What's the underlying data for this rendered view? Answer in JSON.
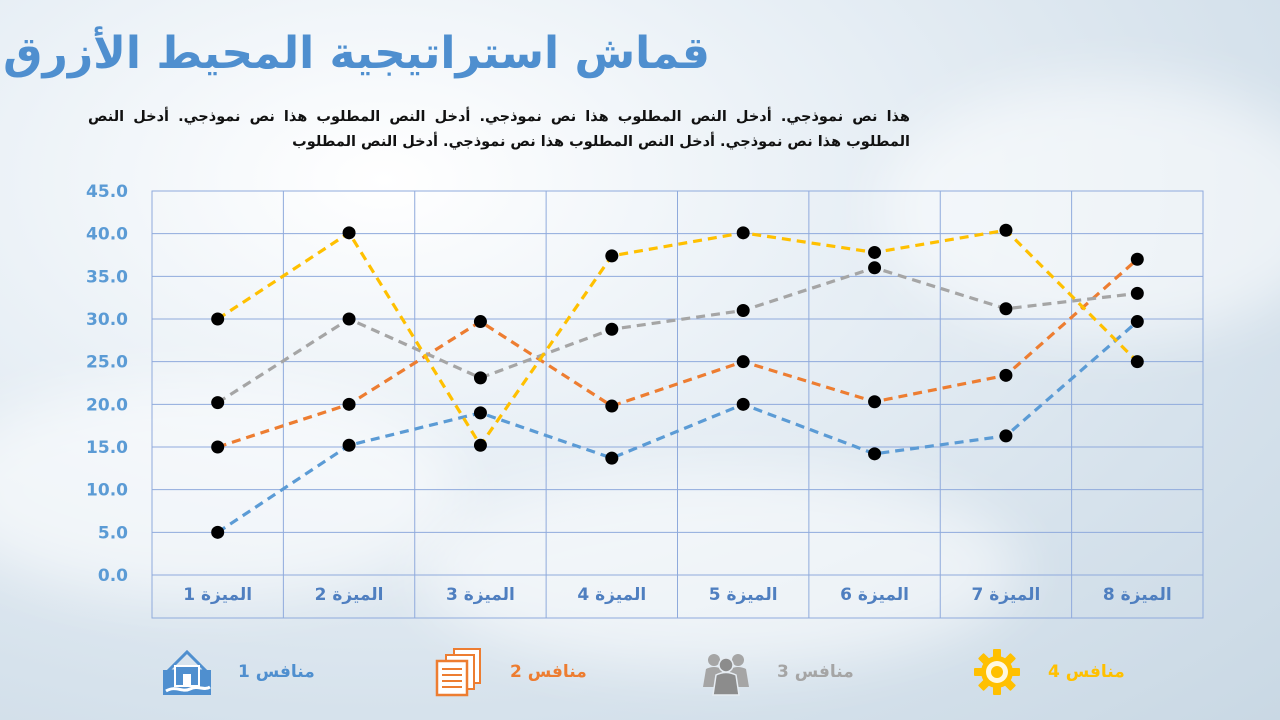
{
  "title": "قماش استراتيجية المحيط الأزرق",
  "subtitle": "هذا نص نموذجي. أدخل النص المطلوب هذا نص نموذجي. أدخل النص المطلوب هذا نص نموذجي. أدخل النص المطلوب هذا نص نموذجي. أدخل النص المطلوب هذا نص نموذجي. أدخل النص المطلوب",
  "chart_data": {
    "type": "line",
    "categories": [
      "الميزة 1",
      "الميزة 2",
      "الميزة 3",
      "الميزة 4",
      "الميزة 5",
      "الميزة 6",
      "الميزة 7",
      "الميزة 8"
    ],
    "ylim": [
      0,
      45
    ],
    "yticks": [
      "0.0",
      "5.0",
      "10.0",
      "15.0",
      "20.0",
      "25.0",
      "30.0",
      "35.0",
      "40.0",
      "45.0"
    ],
    "grid": true,
    "line_style": "dashed",
    "legend_position": "bottom",
    "series": [
      {
        "name": "منافس 1",
        "color": "#5b9bd5",
        "icon": "home-icon",
        "values": [
          5,
          15.2,
          19,
          13.7,
          20,
          14.2,
          16.3,
          29.7
        ]
      },
      {
        "name": "منافس 2",
        "color": "#ed7d31",
        "icon": "documents-icon",
        "values": [
          15,
          20,
          29.7,
          19.8,
          25,
          20.3,
          23.4,
          37
        ]
      },
      {
        "name": "منافس 3",
        "color": "#a5a5a5",
        "icon": "group-icon",
        "values": [
          20.2,
          30,
          23.1,
          28.8,
          31,
          36,
          31.2,
          33
        ]
      },
      {
        "name": "منافس 4",
        "color": "#ffc000",
        "icon": "gear-icon",
        "values": [
          30,
          40.1,
          15.2,
          37.4,
          40.1,
          37.8,
          40.4,
          25
        ]
      }
    ]
  }
}
